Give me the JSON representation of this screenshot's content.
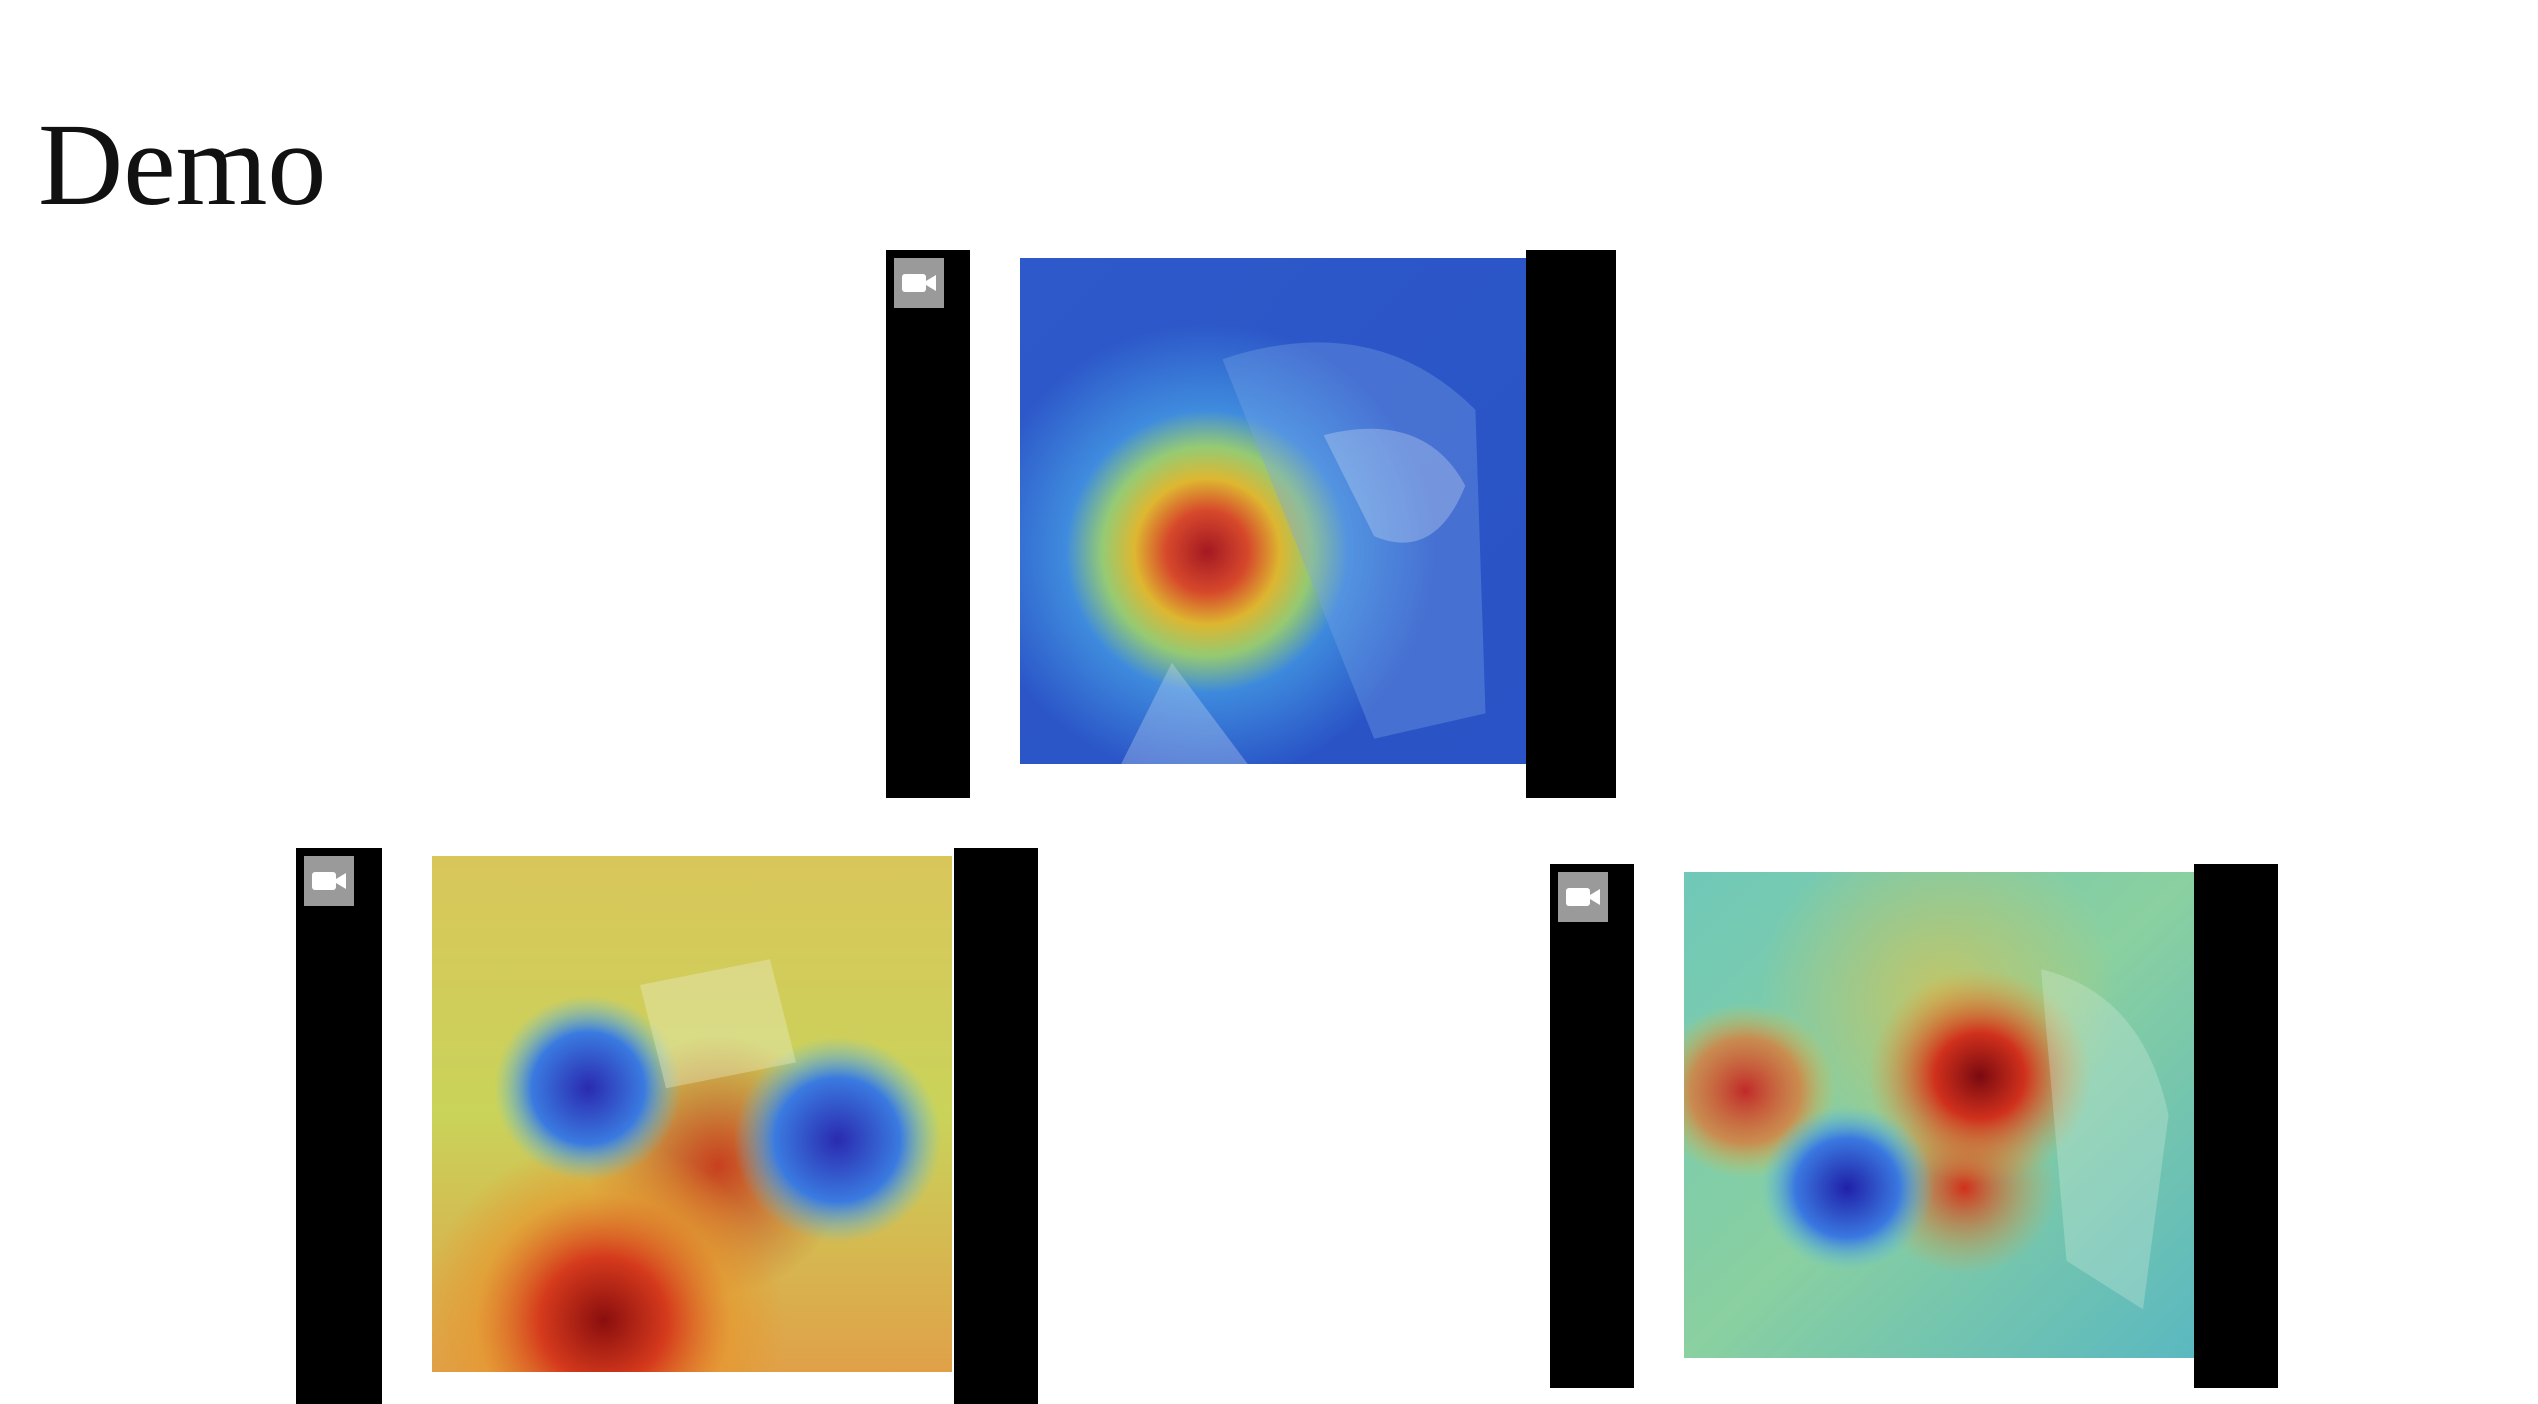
{
  "slide": {
    "title": "Demo"
  },
  "videos": [
    {
      "id": "top-video",
      "icon": "video-camera-icon",
      "heatmap_focus": "face-and-phone"
    },
    {
      "id": "bottom-left-video",
      "icon": "video-camera-icon",
      "heatmap_focus": "lower-body-and-hands"
    },
    {
      "id": "bottom-right-video",
      "icon": "video-camera-icon",
      "heatmap_focus": "dashboard-and-arm"
    }
  ],
  "colors": {
    "background": "#ffffff",
    "letterbox": "#000000",
    "camera_badge": "#9a9a9a"
  }
}
